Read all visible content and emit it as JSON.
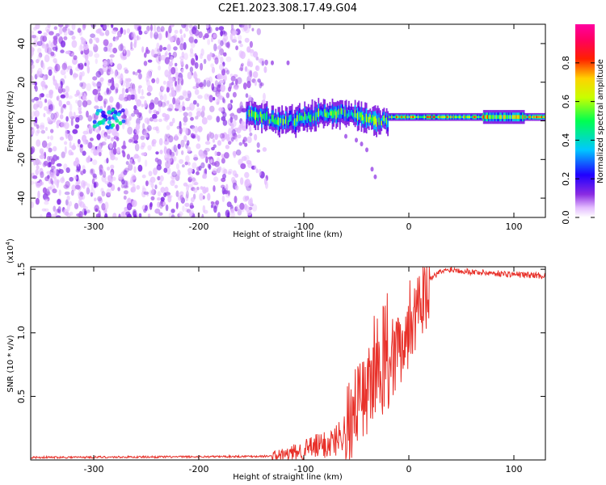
{
  "title": "C2E1.2023.308.17.49.G04",
  "chart_data": [
    {
      "type": "heatmap",
      "xlabel": "Height of straight line (km)",
      "ylabel": "Frequency (Hz)",
      "xlim": [
        -360,
        130
      ],
      "ylim": [
        -50,
        50
      ],
      "xticks": [
        -300,
        -200,
        -100,
        0,
        100
      ],
      "yticks": [
        -40,
        -20,
        0,
        20,
        40
      ],
      "colorbar": {
        "label": "Normalized spectral amplitude",
        "ticks": [
          "0.0",
          "0.2",
          "0.4",
          "0.6",
          "0.8"
        ],
        "range": [
          0,
          1
        ]
      },
      "features": [
        {
          "name": "noise",
          "x": [
            -360,
            -135
          ],
          "y": [
            -50,
            50
          ],
          "amplitude": 0.15
        },
        {
          "name": "signal",
          "x": [
            -155,
            130
          ],
          "center_hz": 2,
          "amplitude_range": [
            0.2,
            0.95
          ]
        }
      ]
    },
    {
      "type": "line",
      "xlabel": "Height of straight line (km)",
      "ylabel": "SNR (10 * v/v)",
      "yscale_label": "(x10",
      "yscale_exp": "4",
      "yscale_close": ")",
      "xlim": [
        -360,
        130
      ],
      "ylim": [
        0,
        1.52
      ],
      "xticks": [
        -300,
        -200,
        -100,
        0,
        100
      ],
      "yticks": [
        "0.5",
        "1.0",
        "1.5"
      ],
      "color": "#e8312a",
      "profile": {
        "x": [
          -360,
          -200,
          -130,
          -110,
          -100,
          -90,
          -80,
          -70,
          -60,
          -50,
          -40,
          -30,
          -20,
          -10,
          0,
          10,
          20,
          30,
          40,
          60,
          80,
          100,
          130
        ],
        "y": [
          0.02,
          0.025,
          0.03,
          0.05,
          0.08,
          0.1,
          0.12,
          0.15,
          0.25,
          0.45,
          0.55,
          0.6,
          0.7,
          0.85,
          1.05,
          1.3,
          1.42,
          1.48,
          1.5,
          1.48,
          1.47,
          1.46,
          1.45
        ]
      }
    }
  ]
}
